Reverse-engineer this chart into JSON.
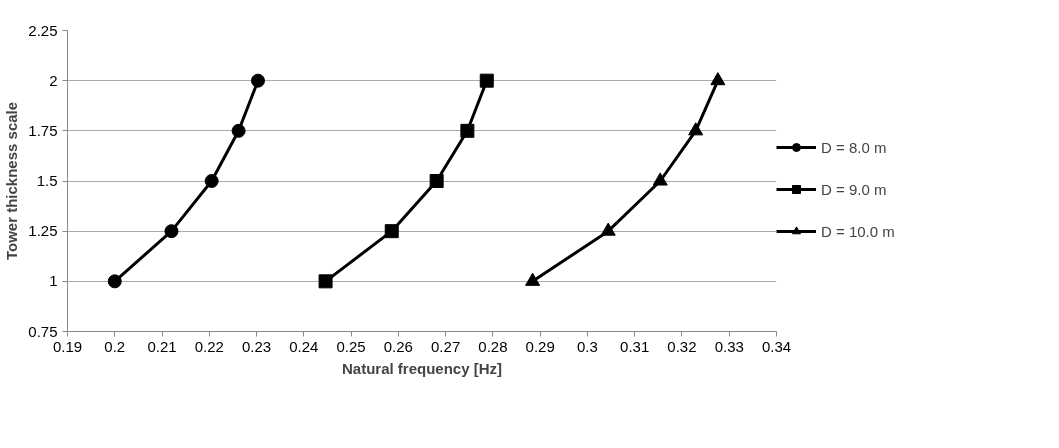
{
  "chart_data": {
    "type": "line",
    "xlabel": "Natural frequency [Hz]",
    "ylabel": "Tower thickness scale",
    "xlim": [
      0.19,
      0.34
    ],
    "xticks": [
      0.19,
      0.2,
      0.21,
      0.22,
      0.23,
      0.24,
      0.25,
      0.26,
      0.27,
      0.28,
      0.29,
      0.3,
      0.31,
      0.32,
      0.33,
      0.34
    ],
    "ylim": [
      0.75,
      2.25
    ],
    "yticks": [
      0.75,
      1,
      1.25,
      1.5,
      1.75,
      2,
      2.25
    ],
    "grid": "y",
    "legend": "right",
    "line_style": "solid",
    "series": [
      {
        "name": "D = 8.0 m",
        "color": "#000000",
        "marker": "circle",
        "x": [
          0.2,
          0.212,
          0.2205,
          0.2262,
          0.2303
        ],
        "values": [
          1,
          1.25,
          1.5,
          1.75,
          2
        ]
      },
      {
        "name": "D = 9.0 m",
        "color": "#000000",
        "marker": "square",
        "x": [
          0.2446,
          0.2586,
          0.2681,
          0.2746,
          0.2787
        ],
        "values": [
          1,
          1.25,
          1.5,
          1.75,
          2
        ]
      },
      {
        "name": "D = 10.0 m",
        "color": "#000000",
        "marker": "triangle",
        "x": [
          0.2884,
          0.3044,
          0.3154,
          0.3229,
          0.3276
        ],
        "values": [
          1,
          1.25,
          1.5,
          1.75,
          2
        ]
      }
    ]
  }
}
